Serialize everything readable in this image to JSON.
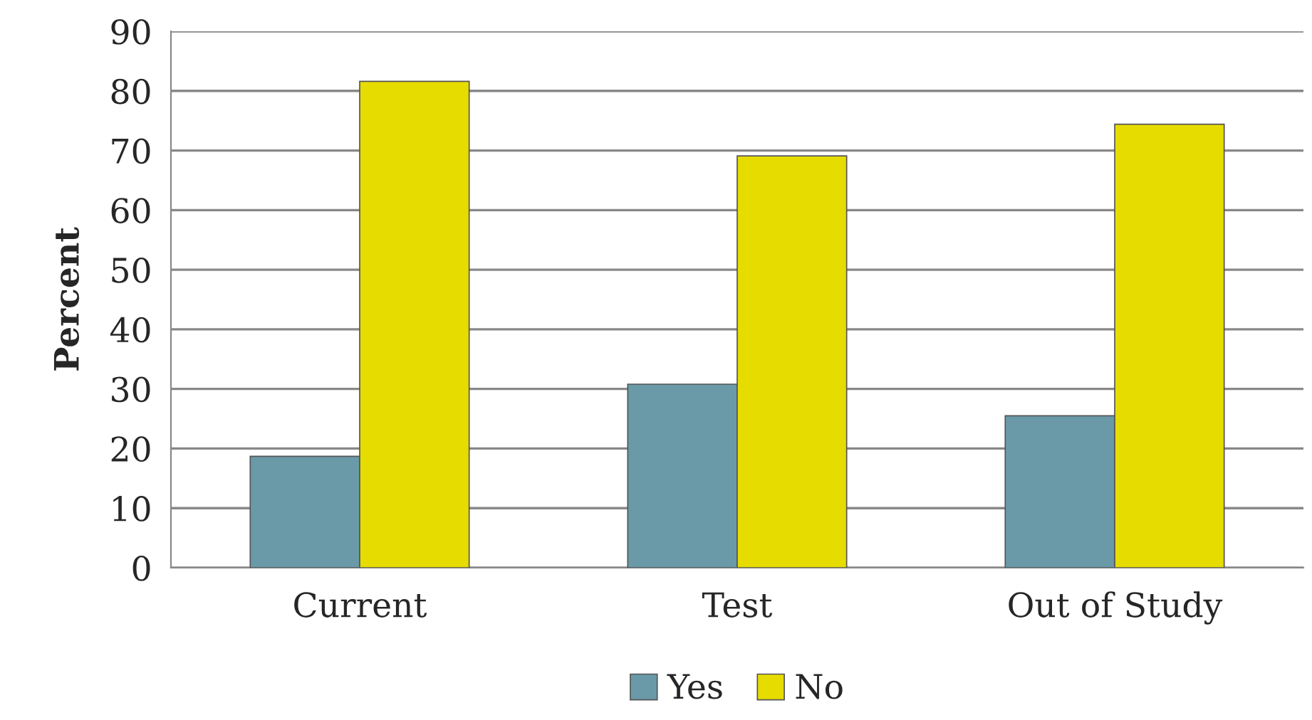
{
  "chart_data": {
    "type": "bar",
    "ylabel": "Percent",
    "categories": [
      "Current",
      "Test",
      "Out of Study"
    ],
    "series": [
      {
        "name": "Yes",
        "color": "#6a9aa8",
        "values": [
          18.7,
          30.8,
          25.5
        ]
      },
      {
        "name": "No",
        "color": "#e6dc00",
        "values": [
          81.6,
          69.1,
          74.4
        ]
      }
    ],
    "ylim": [
      0,
      90
    ],
    "yticks": [
      0,
      10,
      20,
      30,
      40,
      50,
      60,
      70,
      80,
      90
    ],
    "grid": "y",
    "legend": "bottom"
  }
}
